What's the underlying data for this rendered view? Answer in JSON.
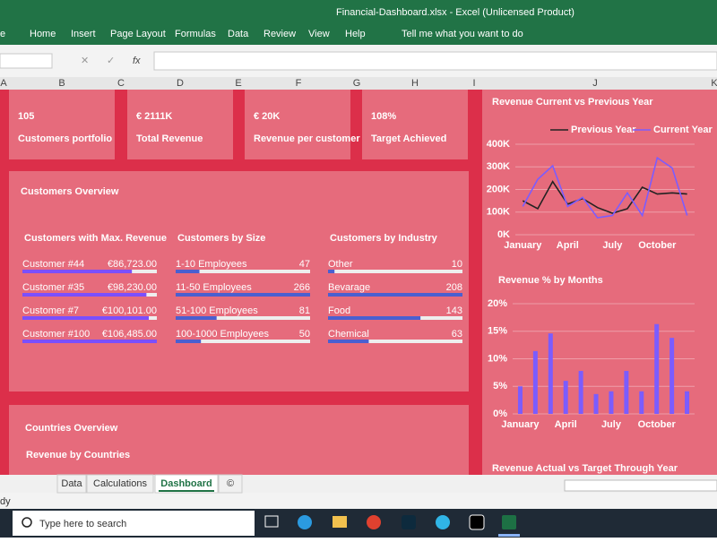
{
  "title_bar": {
    "title": "Financial-Dashboard.xlsx  -  Excel (Unlicensed Product)"
  },
  "ribbon": {
    "tabs": [
      "e",
      "Home",
      "Insert",
      "Page Layout",
      "Formulas",
      "Data",
      "Review",
      "View",
      "Help"
    ],
    "search": "Tell me what you want to do"
  },
  "formula_bar": {
    "function_icon": "fx"
  },
  "columns": [
    "A",
    "B",
    "C",
    "D",
    "E",
    "F",
    "G",
    "H",
    "I",
    "J",
    "K"
  ],
  "kpis": [
    {
      "value": "105",
      "label": "Customers portfolio"
    },
    {
      "value": "€ 2111K",
      "label": "Total Revenue"
    },
    {
      "value": "€ 20K",
      "label": "Revenue per customer"
    },
    {
      "value": "108%",
      "label": "Target Achieved"
    }
  ],
  "overview": {
    "title": "Customers Overview",
    "groups": [
      {
        "title": "Customers with Max. Revenue",
        "color": "#7b4fff",
        "categories": [
          "Customer #44",
          "Customer #35",
          "Customer #7",
          "Customer #100"
        ],
        "values": [
          86723,
          98230,
          100101,
          106485
        ],
        "value_labels": [
          "€86,723.00",
          "€98,230.00",
          "€100,101.00",
          "€106,485.00"
        ]
      },
      {
        "title": "Customers by Size",
        "color": "#4a5fd0",
        "categories": [
          "1-10 Employees",
          "11-50 Employees",
          "51-100 Employees",
          "100-1000 Employees"
        ],
        "values": [
          47,
          266,
          81,
          50
        ]
      },
      {
        "title": "Customers by Industry",
        "color": "#4a5fd0",
        "categories": [
          "Other",
          "Bevarage",
          "Food",
          "Chemical"
        ],
        "values": [
          10,
          208,
          143,
          63
        ]
      }
    ]
  },
  "countries": {
    "title": "Countries Overview",
    "subtitle": "Revenue by Countries"
  },
  "chart_data": [
    {
      "type": "line",
      "title": "Revenue Current vs Previous Year",
      "categories": [
        "January",
        null,
        null,
        "April",
        null,
        null,
        "July",
        null,
        null,
        "October",
        null,
        null
      ],
      "series": [
        {
          "name": "Previous Year",
          "color": "#222222",
          "values": [
            150000,
            115000,
            235000,
            135000,
            160000,
            120000,
            95000,
            115000,
            210000,
            180000,
            185000,
            180000
          ]
        },
        {
          "name": "Current Year",
          "color": "#7b5cff",
          "values": [
            125000,
            245000,
            305000,
            125000,
            165000,
            75000,
            85000,
            185000,
            85000,
            340000,
            295000,
            85000
          ]
        }
      ],
      "ylim": [
        0,
        400000
      ],
      "yticks": [
        {
          "value": 0,
          "label": "0K"
        },
        {
          "value": 100000,
          "label": "100K"
        },
        {
          "value": 200000,
          "label": "200K"
        },
        {
          "value": 300000,
          "label": "300K"
        },
        {
          "value": 400000,
          "label": "400K"
        }
      ],
      "grid": true
    },
    {
      "type": "bar",
      "title": "Revenue % by Months",
      "categories": [
        "January",
        null,
        null,
        "April",
        null,
        null,
        "July",
        null,
        null,
        "October",
        null,
        null
      ],
      "values": [
        5,
        11.4,
        14.6,
        6,
        7.8,
        3.6,
        4.1,
        7.8,
        4.1,
        16.3,
        13.8,
        4.1
      ],
      "color": "#7b5cff",
      "ylim": [
        0,
        20
      ],
      "yticks": [
        {
          "value": 0,
          "label": "0%"
        },
        {
          "value": 5,
          "label": "5%"
        },
        {
          "value": 10,
          "label": "10%"
        },
        {
          "value": 15,
          "label": "15%"
        },
        {
          "value": 20,
          "label": "20%"
        }
      ],
      "grid": true
    }
  ],
  "cut_off_chart": {
    "title": "Revenue Actual vs Target Through Year"
  },
  "sheet_tabs": {
    "tabs": [
      "Data",
      "Calculations",
      "Dashboard",
      "©"
    ],
    "active": 2
  },
  "status_bar": {
    "text": "dy"
  },
  "taskbar": {
    "search": "Type here to search"
  }
}
